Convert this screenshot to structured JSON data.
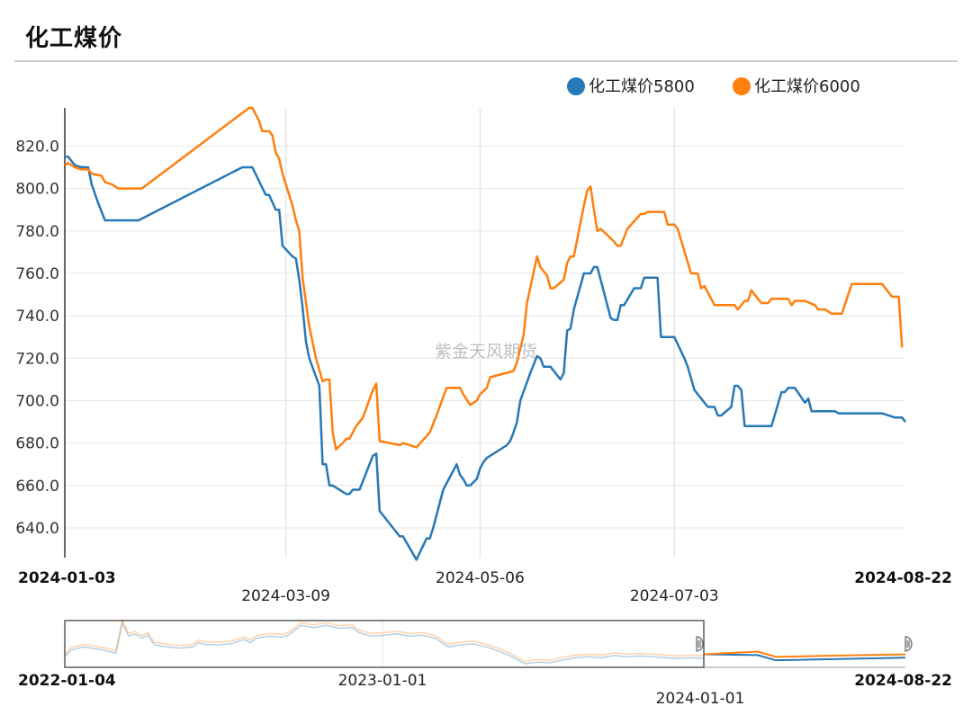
{
  "page_title": "化工煤价",
  "watermark": "紫金天风期货",
  "colors": {
    "series_a": "#2878b5",
    "series_b": "#ff7f0e",
    "grid": "#e6e6e6"
  },
  "chart_data": {
    "type": "line",
    "title": "化工煤价",
    "legend_position": "top-right",
    "grid": true,
    "x_start": "2024-01-03",
    "x_end": "2024-08-22",
    "ylim": [
      626,
      838
    ],
    "y_ticks": [
      "640.0",
      "660.0",
      "680.0",
      "700.0",
      "720.0",
      "740.0",
      "760.0",
      "780.0",
      "800.0",
      "820.0"
    ],
    "y_tick_values": [
      640,
      660,
      680,
      700,
      720,
      740,
      760,
      780,
      800,
      820
    ],
    "x_ticks": [
      {
        "label": "2024-01-03",
        "date": "2024-01-03",
        "edge": true
      },
      {
        "label": "2024-03-09",
        "date": "2024-03-09",
        "edge": false
      },
      {
        "label": "2024-05-06",
        "date": "2024-05-06",
        "edge": false
      },
      {
        "label": "2024-07-03",
        "date": "2024-07-03",
        "edge": false
      },
      {
        "label": "2024-08-22",
        "date": "2024-08-22",
        "edge": true
      }
    ],
    "series": [
      {
        "name": "化工煤价5800",
        "points": [
          [
            "2024-01-03",
            815
          ],
          [
            "2024-01-04",
            815
          ],
          [
            "2024-01-05",
            813
          ],
          [
            "2024-01-06",
            811
          ],
          [
            "2024-01-08",
            810
          ],
          [
            "2024-01-10",
            810
          ],
          [
            "2024-01-11",
            802
          ],
          [
            "2024-01-13",
            793
          ],
          [
            "2024-01-15",
            785
          ],
          [
            "2024-01-25",
            785
          ],
          [
            "2024-02-25",
            810
          ],
          [
            "2024-02-28",
            810
          ],
          [
            "2024-03-03",
            797
          ],
          [
            "2024-03-04",
            797
          ],
          [
            "2024-03-06",
            790
          ],
          [
            "2024-03-07",
            790
          ],
          [
            "2024-03-08",
            773
          ],
          [
            "2024-03-11",
            768
          ],
          [
            "2024-03-12",
            767
          ],
          [
            "2024-03-13",
            757
          ],
          [
            "2024-03-14",
            744
          ],
          [
            "2024-03-15",
            728
          ],
          [
            "2024-03-16",
            720
          ],
          [
            "2024-03-19",
            707
          ],
          [
            "2024-03-20",
            670
          ],
          [
            "2024-03-21",
            670
          ],
          [
            "2024-03-22",
            660
          ],
          [
            "2024-03-23",
            660
          ],
          [
            "2024-03-26",
            657
          ],
          [
            "2024-03-27",
            656
          ],
          [
            "2024-03-28",
            656
          ],
          [
            "2024-03-29",
            658
          ],
          [
            "2024-03-31",
            658
          ],
          [
            "2024-04-04",
            674
          ],
          [
            "2024-04-05",
            675
          ],
          [
            "2024-04-06",
            648
          ],
          [
            "2024-04-12",
            636
          ],
          [
            "2024-04-13",
            636
          ],
          [
            "2024-04-17",
            625
          ],
          [
            "2024-04-20",
            635
          ],
          [
            "2024-04-21",
            635
          ],
          [
            "2024-04-22",
            640
          ],
          [
            "2024-04-25",
            658
          ],
          [
            "2024-04-29",
            670
          ],
          [
            "2024-04-30",
            665
          ],
          [
            "2024-05-01",
            663
          ],
          [
            "2024-05-02",
            660
          ],
          [
            "2024-05-03",
            660
          ],
          [
            "2024-05-05",
            663
          ],
          [
            "2024-05-06",
            668
          ],
          [
            "2024-05-07",
            671
          ],
          [
            "2024-05-08",
            673
          ],
          [
            "2024-05-14",
            679
          ],
          [
            "2024-05-15",
            681
          ],
          [
            "2024-05-16",
            685
          ],
          [
            "2024-05-17",
            690
          ],
          [
            "2024-05-18",
            700
          ],
          [
            "2024-05-21",
            713
          ],
          [
            "2024-05-23",
            721
          ],
          [
            "2024-05-24",
            720
          ],
          [
            "2024-05-25",
            716
          ],
          [
            "2024-05-27",
            716
          ],
          [
            "2024-05-30",
            710
          ],
          [
            "2024-05-31",
            713
          ],
          [
            "2024-06-01",
            733
          ],
          [
            "2024-06-02",
            734
          ],
          [
            "2024-06-03",
            743
          ],
          [
            "2024-06-06",
            760
          ],
          [
            "2024-06-08",
            760
          ],
          [
            "2024-06-09",
            763
          ],
          [
            "2024-06-10",
            763
          ],
          [
            "2024-06-14",
            739
          ],
          [
            "2024-06-15",
            738
          ],
          [
            "2024-06-16",
            738
          ],
          [
            "2024-06-17",
            745
          ],
          [
            "2024-06-18",
            745
          ],
          [
            "2024-06-21",
            753
          ],
          [
            "2024-06-23",
            753
          ],
          [
            "2024-06-24",
            758
          ],
          [
            "2024-06-28",
            758
          ],
          [
            "2024-06-29",
            730
          ],
          [
            "2024-07-03",
            730
          ],
          [
            "2024-07-06",
            720
          ],
          [
            "2024-07-07",
            716
          ],
          [
            "2024-07-09",
            705
          ],
          [
            "2024-07-13",
            697
          ],
          [
            "2024-07-14",
            697
          ],
          [
            "2024-07-15",
            697
          ],
          [
            "2024-07-16",
            693
          ],
          [
            "2024-07-17",
            693
          ],
          [
            "2024-07-20",
            697
          ],
          [
            "2024-07-21",
            707
          ],
          [
            "2024-07-22",
            707
          ],
          [
            "2024-07-23",
            705
          ],
          [
            "2024-07-24",
            688
          ],
          [
            "2024-08-01",
            688
          ],
          [
            "2024-08-04",
            704
          ],
          [
            "2024-08-05",
            704
          ],
          [
            "2024-08-06",
            706
          ],
          [
            "2024-08-08",
            706
          ],
          [
            "2024-08-11",
            699
          ],
          [
            "2024-08-12",
            701
          ],
          [
            "2024-08-13",
            695
          ],
          [
            "2024-08-20",
            695
          ],
          [
            "2024-08-21",
            694
          ],
          [
            "2024-08-28",
            694
          ],
          [
            "2024-09-03",
            694
          ],
          [
            "2024-09-07",
            692
          ],
          [
            "2024-09-09",
            692
          ],
          [
            "2024-09-10",
            690
          ]
        ]
      },
      {
        "name": "化工煤价6000",
        "points": [
          [
            "2024-01-03",
            811
          ],
          [
            "2024-01-04",
            812
          ],
          [
            "2024-01-06",
            810
          ],
          [
            "2024-01-08",
            809
          ],
          [
            "2024-01-10",
            809
          ],
          [
            "2024-01-11",
            807
          ],
          [
            "2024-01-14",
            806
          ],
          [
            "2024-01-15",
            803
          ],
          [
            "2024-01-17",
            802
          ],
          [
            "2024-01-19",
            800
          ],
          [
            "2024-01-26",
            800
          ],
          [
            "2024-02-27",
            838
          ],
          [
            "2024-02-28",
            838
          ],
          [
            "2024-03-01",
            832
          ],
          [
            "2024-03-02",
            827
          ],
          [
            "2024-03-04",
            827
          ],
          [
            "2024-03-05",
            825
          ],
          [
            "2024-03-06",
            817
          ],
          [
            "2024-03-07",
            814
          ],
          [
            "2024-03-08",
            807
          ],
          [
            "2024-03-11",
            792
          ],
          [
            "2024-03-12",
            785
          ],
          [
            "2024-03-13",
            780
          ],
          [
            "2024-03-14",
            758
          ],
          [
            "2024-03-16",
            735
          ],
          [
            "2024-03-18",
            720
          ],
          [
            "2024-03-20",
            709
          ],
          [
            "2024-03-21",
            710
          ],
          [
            "2024-03-22",
            710
          ],
          [
            "2024-03-23",
            685
          ],
          [
            "2024-03-24",
            677
          ],
          [
            "2024-03-26",
            680
          ],
          [
            "2024-03-27",
            682
          ],
          [
            "2024-03-28",
            682
          ],
          [
            "2024-03-30",
            688
          ],
          [
            "2024-04-01",
            692
          ],
          [
            "2024-04-04",
            705
          ],
          [
            "2024-04-05",
            708
          ],
          [
            "2024-04-06",
            681
          ],
          [
            "2024-04-12",
            679
          ],
          [
            "2024-04-13",
            680
          ],
          [
            "2024-04-17",
            678
          ],
          [
            "2024-04-21",
            685
          ],
          [
            "2024-04-23",
            693
          ],
          [
            "2024-04-26",
            706
          ],
          [
            "2024-04-30",
            706
          ],
          [
            "2024-05-01",
            703
          ],
          [
            "2024-05-03",
            698
          ],
          [
            "2024-05-05",
            700
          ],
          [
            "2024-05-06",
            703
          ],
          [
            "2024-05-08",
            706
          ],
          [
            "2024-05-09",
            711
          ],
          [
            "2024-05-16",
            714
          ],
          [
            "2024-05-17",
            718
          ],
          [
            "2024-05-19",
            731
          ],
          [
            "2024-05-20",
            746
          ],
          [
            "2024-05-23",
            768
          ],
          [
            "2024-05-24",
            763
          ],
          [
            "2024-05-26",
            759
          ],
          [
            "2024-05-27",
            753
          ],
          [
            "2024-05-28",
            753
          ],
          [
            "2024-05-31",
            757
          ],
          [
            "2024-06-01",
            765
          ],
          [
            "2024-06-02",
            768
          ],
          [
            "2024-06-03",
            768
          ],
          [
            "2024-06-06",
            792
          ],
          [
            "2024-06-07",
            799
          ],
          [
            "2024-06-08",
            801
          ],
          [
            "2024-06-09",
            790
          ],
          [
            "2024-06-10",
            780
          ],
          [
            "2024-06-11",
            781
          ],
          [
            "2024-06-15",
            775
          ],
          [
            "2024-06-16",
            773
          ],
          [
            "2024-06-17",
            773
          ],
          [
            "2024-06-19",
            781
          ],
          [
            "2024-06-23",
            788
          ],
          [
            "2024-06-24",
            788
          ],
          [
            "2024-06-25",
            789
          ],
          [
            "2024-06-30",
            789
          ],
          [
            "2024-07-01",
            783
          ],
          [
            "2024-07-03",
            783
          ],
          [
            "2024-07-04",
            781
          ],
          [
            "2024-07-08",
            760
          ],
          [
            "2024-07-10",
            760
          ],
          [
            "2024-07-11",
            753
          ],
          [
            "2024-07-12",
            754
          ],
          [
            "2024-07-15",
            745
          ],
          [
            "2024-07-21",
            745
          ],
          [
            "2024-07-22",
            743
          ],
          [
            "2024-07-24",
            747
          ],
          [
            "2024-07-25",
            747
          ],
          [
            "2024-07-26",
            752
          ],
          [
            "2024-07-29",
            746
          ],
          [
            "2024-07-31",
            746
          ],
          [
            "2024-08-01",
            748
          ],
          [
            "2024-08-06",
            748
          ],
          [
            "2024-08-07",
            745
          ],
          [
            "2024-08-08",
            747
          ],
          [
            "2024-08-11",
            747
          ],
          [
            "2024-08-14",
            745
          ],
          [
            "2024-08-15",
            743
          ],
          [
            "2024-08-17",
            743
          ],
          [
            "2024-08-19",
            741
          ],
          [
            "2024-08-22",
            741
          ],
          [
            "2024-08-25",
            755
          ],
          [
            "2024-09-03",
            755
          ],
          [
            "2024-09-06",
            749
          ],
          [
            "2024-09-08",
            749
          ],
          [
            "2024-09-09",
            725
          ]
        ]
      }
    ],
    "navigator": {
      "x_start_label": "2022-01-04",
      "x_mid_labels": [
        "2023-01-01",
        "2024-01-01"
      ],
      "x_end_label": "2024-08-22"
    }
  }
}
